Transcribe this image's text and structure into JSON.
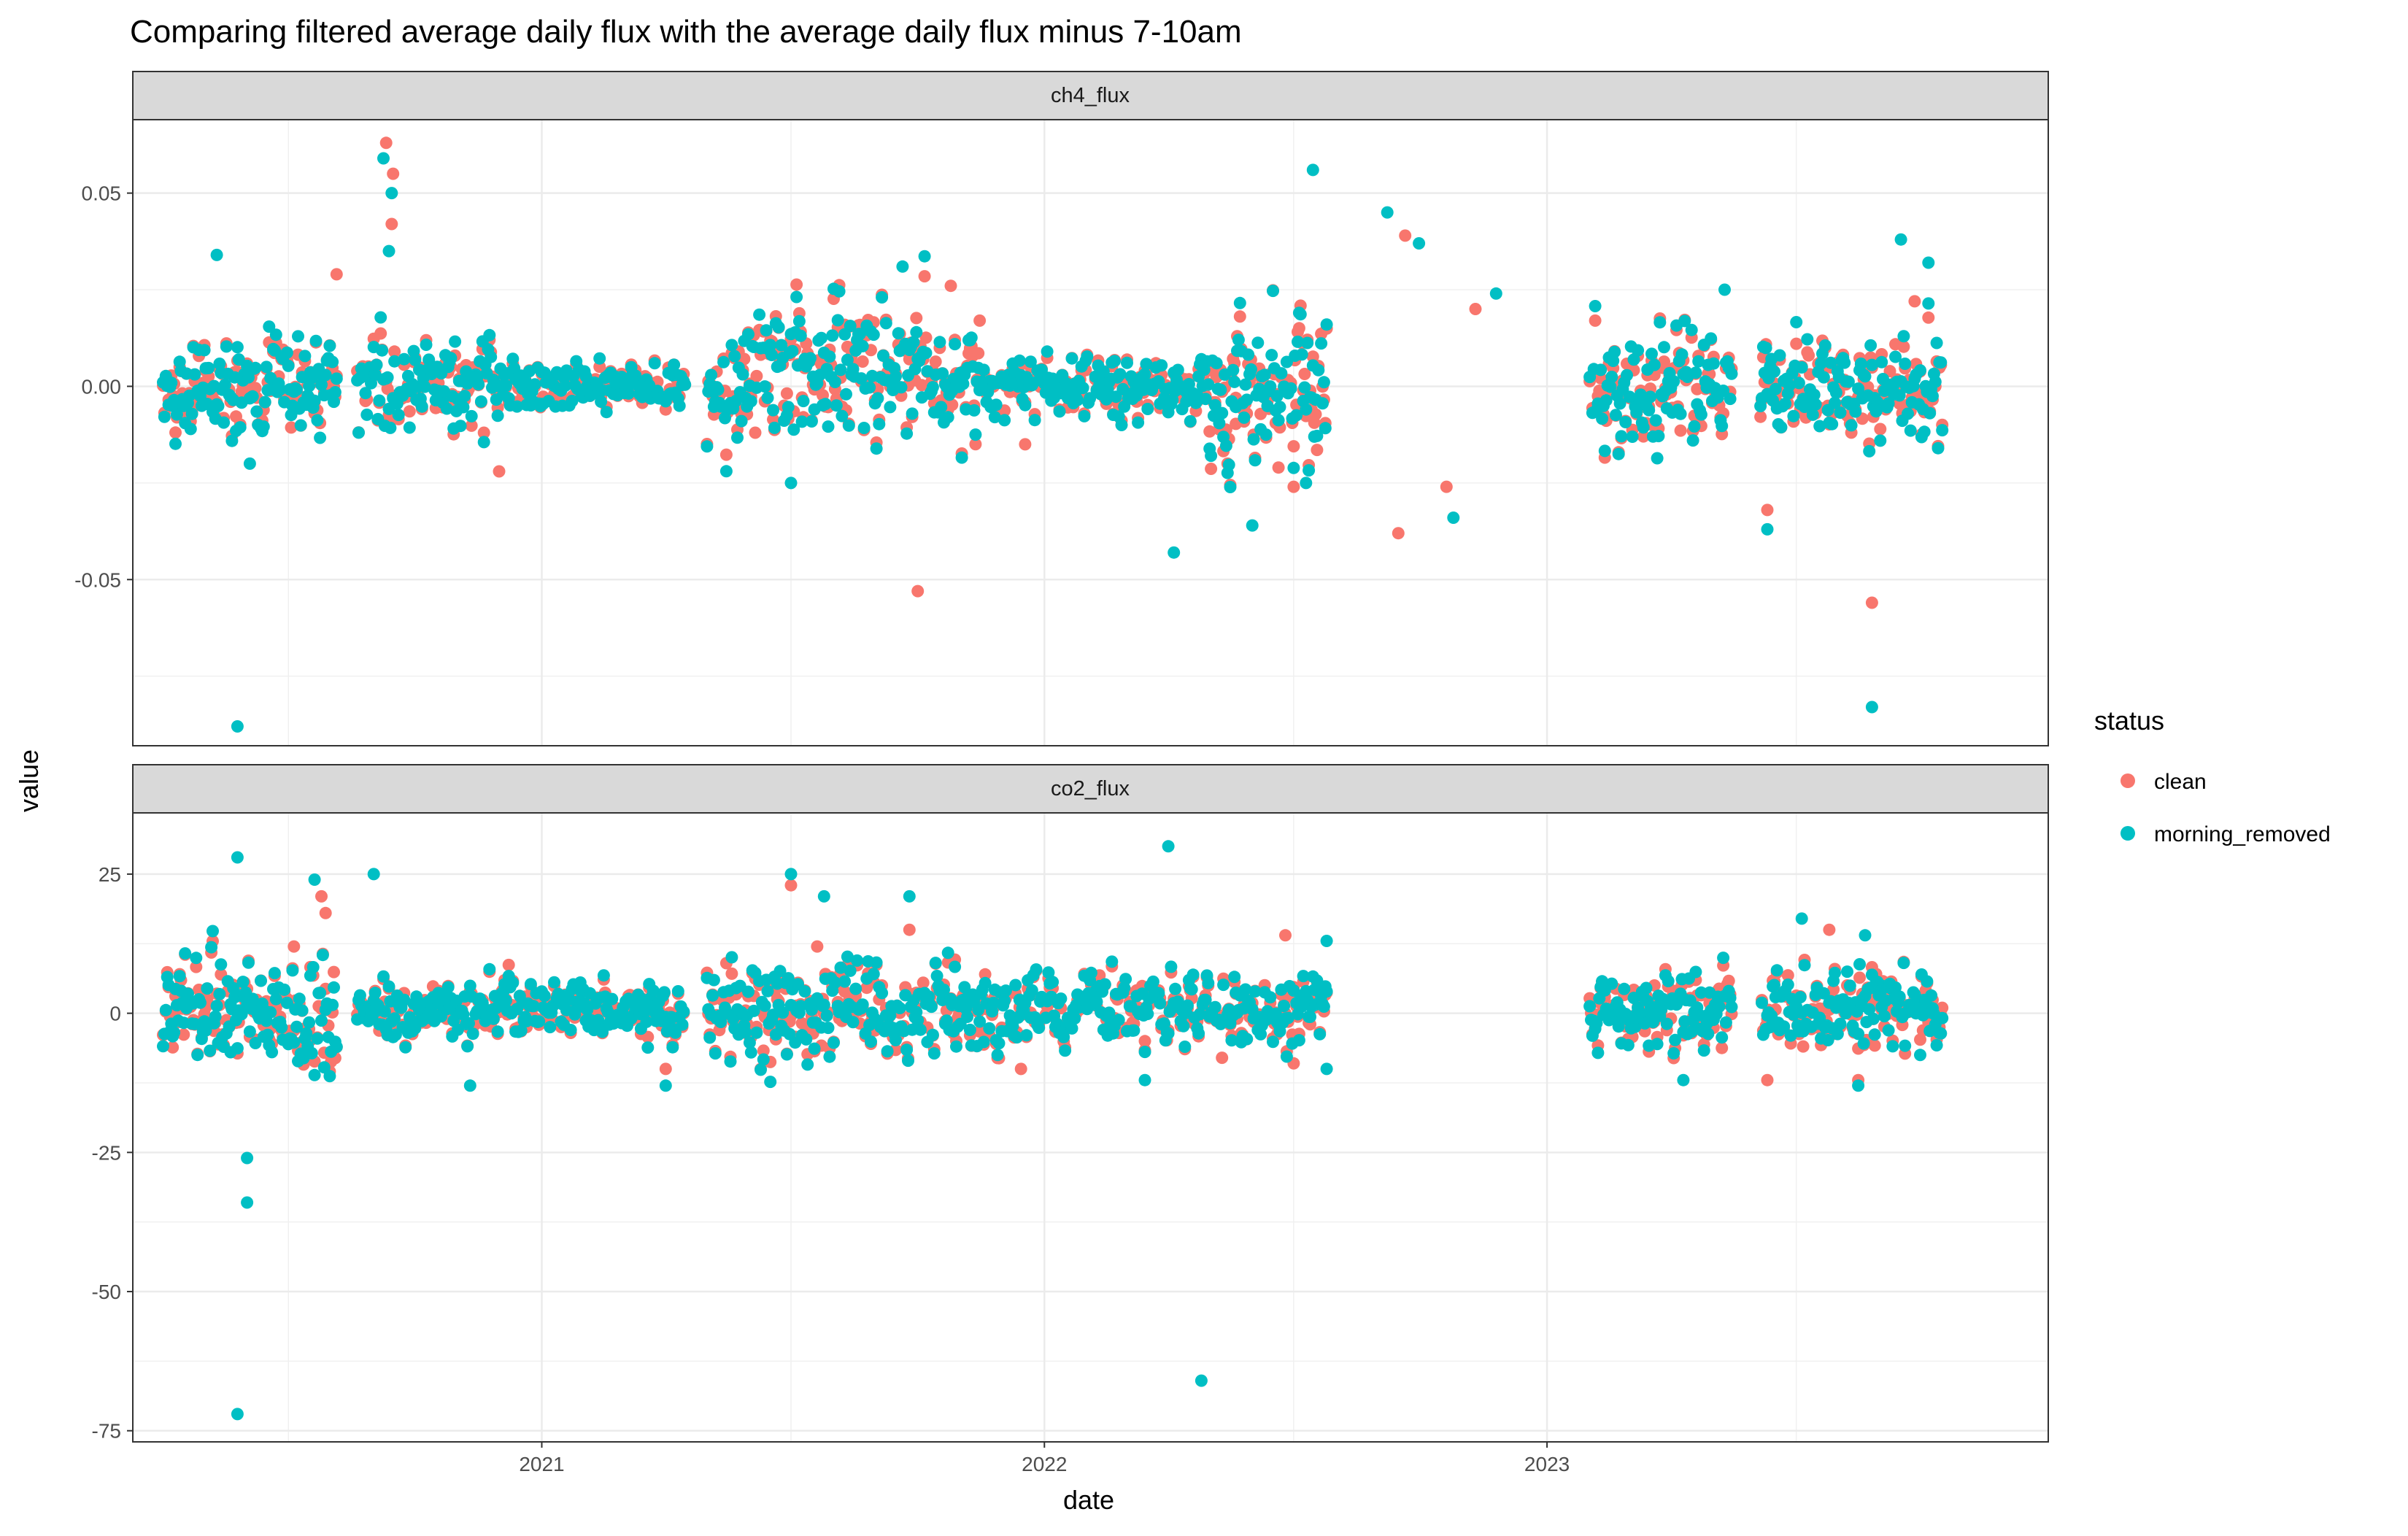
{
  "chart_data": {
    "type": "scatter",
    "title": "Comparing filtered average daily flux with the average daily flux minus 7-10am",
    "xlabel": "date",
    "ylabel": "value",
    "grid": true,
    "legend_position": "right",
    "legend": {
      "title": "status",
      "entries": [
        {
          "name": "clean",
          "color": "#F8766D"
        },
        {
          "name": "morning_removed",
          "color": "#00BFC4"
        }
      ]
    },
    "x_ticks": [
      "2021",
      "2022",
      "2023"
    ],
    "x_tick_values": [
      "2021-01-01",
      "2022-01-01",
      "2023-01-01"
    ],
    "xlim": [
      "2020-03-10",
      "2023-12-31"
    ],
    "panels": [
      {
        "name": "ch4_flux",
        "ylim": [
          -0.093,
          0.069
        ],
        "y_ticks": [
          "0.05",
          "0.00",
          "-0.05"
        ],
        "y_tick_values": [
          0.05,
          0.0,
          -0.05
        ],
        "series": [
          {
            "name": "clean",
            "color": "#F8766D",
            "points": [
              [
                "2020-09-10",
                0.063
              ],
              [
                "2020-09-15",
                0.055
              ],
              [
                "2020-09-14",
                0.042
              ],
              [
                "2020-08-05",
                0.029
              ],
              [
                "2021-10-01",
                -0.053
              ],
              [
                "2023-08-25",
                -0.056
              ],
              [
                "2023-06-10",
                -0.032
              ],
              [
                "2021-12-18",
                -0.015
              ],
              [
                "2020-12-01",
                -0.022
              ],
              [
                "2022-09-15",
                -0.038
              ],
              [
                "2022-09-20",
                0.039
              ],
              [
                "2022-06-20",
                -0.021
              ],
              [
                "2022-07-01",
                -0.026
              ],
              [
                "2021-10-25",
                0.026
              ],
              [
                "2023-09-25",
                0.022
              ],
              [
                "2020-07-20",
                -0.007
              ],
              [
                "2021-04-01",
                -0.006
              ],
              [
                "2022-10-20",
                -0.026
              ],
              [
                "2022-11-10",
                0.02
              ],
              [
                "2021-11-15",
                0.017
              ],
              [
                "2020-05-20",
                -0.004
              ],
              [
                "2022-05-20",
                -0.003
              ],
              [
                "2021-06-05",
                -0.012
              ],
              [
                "2023-07-10",
                0.008
              ]
            ]
          },
          {
            "name": "morning_removed",
            "color": "#00BFC4",
            "points": [
              [
                "2020-05-25",
                -0.088
              ],
              [
                "2023-08-25",
                -0.083
              ],
              [
                "2020-09-08",
                0.059
              ],
              [
                "2022-07-15",
                0.056
              ],
              [
                "2020-09-14",
                0.05
              ],
              [
                "2022-09-07",
                0.045
              ],
              [
                "2020-09-12",
                0.035
              ],
              [
                "2020-05-10",
                0.034
              ],
              [
                "2022-09-30",
                0.037
              ],
              [
                "2023-09-15",
                0.038
              ],
              [
                "2023-10-05",
                0.032
              ],
              [
                "2023-05-10",
                0.025
              ],
              [
                "2022-04-05",
                -0.043
              ],
              [
                "2022-06-01",
                -0.036
              ],
              [
                "2023-06-10",
                -0.037
              ],
              [
                "2022-10-25",
                -0.034
              ],
              [
                "2021-07-01",
                -0.025
              ],
              [
                "2022-07-10",
                -0.025
              ],
              [
                "2020-06-03",
                -0.02
              ],
              [
                "2021-09-20",
                0.031
              ],
              [
                "2022-11-25",
                0.024
              ]
            ]
          }
        ]
      },
      {
        "name": "co2_flux",
        "ylim": [
          -77,
          36
        ],
        "y_ticks": [
          "25",
          "0",
          "-25",
          "-50",
          "-75"
        ],
        "y_tick_values": [
          25,
          0,
          -25,
          -50,
          -75
        ],
        "series": [
          {
            "name": "clean",
            "color": "#F8766D",
            "points": [
              [
                "2020-07-25",
                21
              ],
              [
                "2020-07-28",
                18
              ],
              [
                "2021-07-01",
                23
              ],
              [
                "2021-09-25",
                15
              ],
              [
                "2023-07-25",
                15
              ],
              [
                "2020-12-20",
                3
              ],
              [
                "2021-12-15",
                -10
              ],
              [
                "2022-03-15",
                -5
              ],
              [
                "2022-05-10",
                -8
              ],
              [
                "2022-07-01",
                -9
              ],
              [
                "2023-06-10",
                -12
              ],
              [
                "2023-08-15",
                -12
              ],
              [
                "2021-05-15",
                9
              ],
              [
                "2020-07-05",
                12
              ],
              [
                "2021-04-01",
                -10
              ],
              [
                "2022-06-25",
                14
              ],
              [
                "2023-03-20",
                5
              ],
              [
                "2021-07-20",
                12
              ]
            ]
          },
          {
            "name": "morning_removed",
            "color": "#00BFC4",
            "points": [
              [
                "2020-05-25",
                -72
              ],
              [
                "2022-04-25",
                -66
              ],
              [
                "2020-06-01",
                -34
              ],
              [
                "2020-06-01",
                -26
              ],
              [
                "2020-05-25",
                28
              ],
              [
                "2022-04-01",
                30
              ],
              [
                "2020-09-01",
                25
              ],
              [
                "2020-07-20",
                24
              ],
              [
                "2021-07-01",
                25
              ],
              [
                "2021-07-25",
                21
              ],
              [
                "2021-09-25",
                21
              ],
              [
                "2020-11-10",
                -13
              ],
              [
                "2021-04-01",
                -13
              ],
              [
                "2022-03-15",
                -12
              ],
              [
                "2023-04-10",
                -12
              ],
              [
                "2023-08-15",
                -13
              ],
              [
                "2022-07-25",
                13
              ],
              [
                "2023-07-05",
                17
              ],
              [
                "2023-08-20",
                14
              ],
              [
                "2020-05-20",
                -7
              ],
              [
                "2022-07-25",
                -10
              ]
            ]
          }
        ]
      }
    ]
  }
}
